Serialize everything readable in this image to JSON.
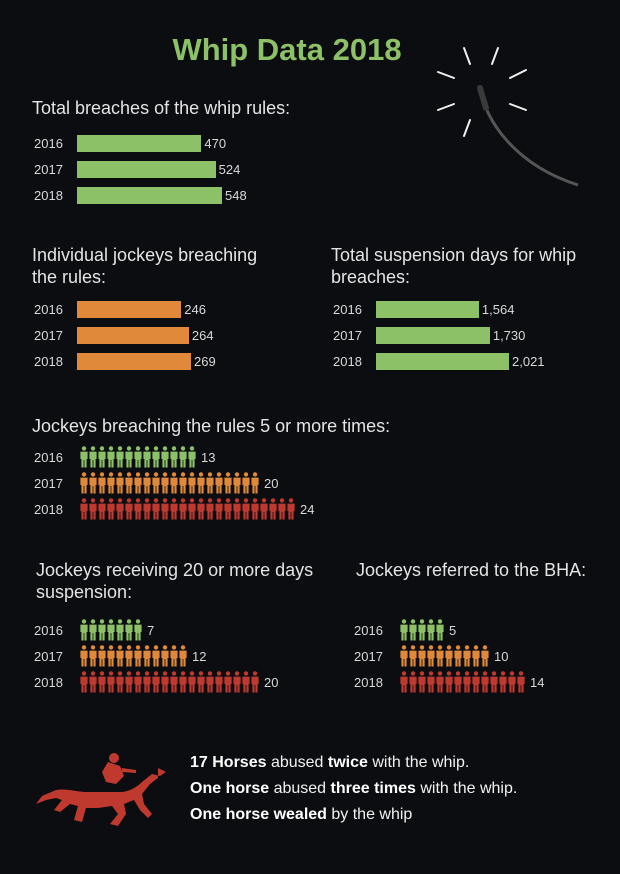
{
  "title": "Whip Data 2018",
  "colors": {
    "green": "#8dc167",
    "orange": "#e0893a",
    "red": "#c0392f",
    "background": "#0b0d10"
  },
  "sections": {
    "total_breaches": {
      "title": "Total breaches of the whip rules:",
      "rows": [
        {
          "year": "2016",
          "value": 470,
          "label": "470"
        },
        {
          "year": "2017",
          "value": 524,
          "label": "524"
        },
        {
          "year": "2018",
          "value": 548,
          "label": "548"
        }
      ]
    },
    "individual_jockeys": {
      "title_line1": "Individual jockeys breaching",
      "title_line2": "the rules:",
      "rows": [
        {
          "year": "2016",
          "value": 246,
          "label": "246"
        },
        {
          "year": "2017",
          "value": 264,
          "label": "264"
        },
        {
          "year": "2018",
          "value": 269,
          "label": "269"
        }
      ]
    },
    "suspension_days": {
      "title_line1": "Total suspension days for whip",
      "title_line2": "breaches:",
      "rows": [
        {
          "year": "2016",
          "value": 1564,
          "label": "1,564"
        },
        {
          "year": "2017",
          "value": 1730,
          "label": "1,730"
        },
        {
          "year": "2018",
          "value": 2021,
          "label": "2,021"
        }
      ]
    },
    "five_or_more": {
      "title": "Jockeys breaching the rules 5 or more times:",
      "rows": [
        {
          "year": "2016",
          "value": 13,
          "label": "13"
        },
        {
          "year": "2017",
          "value": 20,
          "label": "20"
        },
        {
          "year": "2018",
          "value": 24,
          "label": "24"
        }
      ]
    },
    "twenty_days": {
      "title_line1": "Jockeys receiving 20 or more days",
      "title_line2": "suspension:",
      "rows": [
        {
          "year": "2016",
          "value": 7,
          "label": "7"
        },
        {
          "year": "2017",
          "value": 12,
          "label": "12"
        },
        {
          "year": "2018",
          "value": 20,
          "label": "20"
        }
      ]
    },
    "referred_bha": {
      "title": "Jockeys referred to the BHA:",
      "rows": [
        {
          "year": "2016",
          "value": 5,
          "label": "5"
        },
        {
          "year": "2017",
          "value": 10,
          "label": "10"
        },
        {
          "year": "2018",
          "value": 14,
          "label": "14"
        }
      ]
    }
  },
  "footer": {
    "line1_bold1": "17 Horses",
    "line1_text1": " abused ",
    "line1_bold2": "twice",
    "line1_text2": " with the whip.",
    "line2_bold1": "One horse",
    "line2_text1": " abused ",
    "line2_bold2": "three times",
    "line2_text2": " with the whip.",
    "line3_bold1": "One horse wealed",
    "line3_text1": " by the whip"
  },
  "chart_data": [
    {
      "type": "bar",
      "title": "Total breaches of the whip rules:",
      "categories": [
        "2016",
        "2017",
        "2018"
      ],
      "values": [
        470,
        524,
        548
      ]
    },
    {
      "type": "bar",
      "title": "Individual jockeys breaching the rules:",
      "categories": [
        "2016",
        "2017",
        "2018"
      ],
      "values": [
        246,
        264,
        269
      ]
    },
    {
      "type": "bar",
      "title": "Total suspension days for whip breaches:",
      "categories": [
        "2016",
        "2017",
        "2018"
      ],
      "values": [
        1564,
        1730,
        2021
      ]
    },
    {
      "type": "bar",
      "title": "Jockeys breaching the rules 5 or more times:",
      "categories": [
        "2016",
        "2017",
        "2018"
      ],
      "values": [
        13,
        20,
        24
      ]
    },
    {
      "type": "bar",
      "title": "Jockeys receiving 20 or more days suspension:",
      "categories": [
        "2016",
        "2017",
        "2018"
      ],
      "values": [
        7,
        12,
        20
      ]
    },
    {
      "type": "bar",
      "title": "Jockeys referred to the BHA:",
      "categories": [
        "2016",
        "2017",
        "2018"
      ],
      "values": [
        5,
        10,
        14
      ]
    }
  ]
}
